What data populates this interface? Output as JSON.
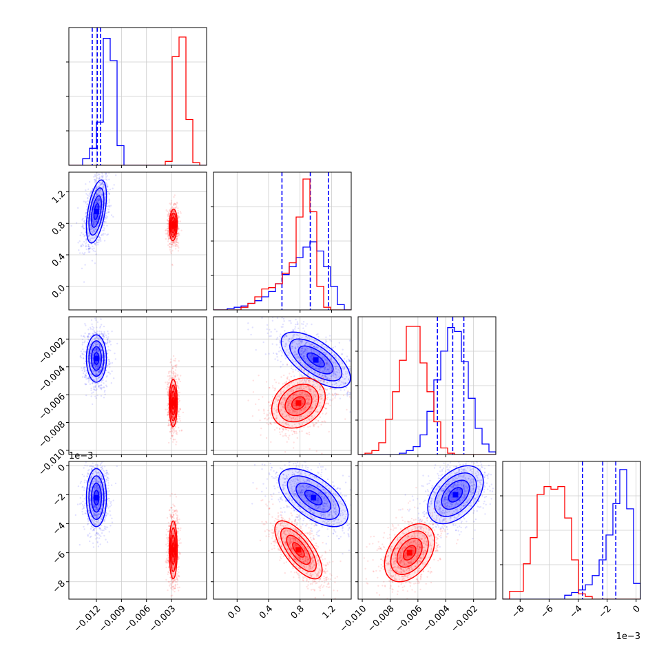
{
  "chart_data": {
    "type": "corner",
    "title": "",
    "parameters": [
      {
        "index": 0,
        "range": [
          -0.0153,
          0.0012
        ],
        "ticks": [
          -0.012,
          -0.009,
          -0.006,
          -0.003
        ],
        "tick_labels": [
          "−0.012",
          "−0.009",
          "−0.006",
          "−0.003"
        ]
      },
      {
        "index": 1,
        "range": [
          -0.3,
          1.45
        ],
        "ticks": [
          0.0,
          0.4,
          0.8,
          1.2
        ],
        "tick_labels": [
          "0.0",
          "0.4",
          "0.8",
          "1.2"
        ]
      },
      {
        "index": 2,
        "range": [
          -0.0103,
          -0.0004
        ],
        "ticks": [
          -0.01,
          -0.008,
          -0.006,
          -0.004,
          -0.002
        ],
        "tick_labels": [
          "−0.010",
          "−0.008",
          "−0.006",
          "−0.004",
          "−0.002"
        ]
      },
      {
        "index": 3,
        "range": [
          -0.0092,
          0.0003
        ],
        "ticks": [
          -0.008,
          -0.006,
          -0.004,
          -0.002,
          0.0
        ],
        "tick_labels": [
          "−8",
          "−6",
          "−4",
          "−2",
          "0"
        ],
        "offset_label": "1e−3"
      }
    ],
    "offset_label_row3": "1e−3",
    "series": [
      {
        "color": "#0000ff",
        "means": [
          -0.012,
          1.0,
          -0.0035,
          -0.002
        ],
        "stds": [
          0.00075,
          0.25,
          0.001,
          0.0012
        ],
        "quantile_lines": [
          [
            -0.0125,
            -0.0119,
            -0.0115
          ],
          [
            0.57,
            0.93,
            1.16
          ],
          [
            -0.0046,
            -0.0035,
            -0.0027
          ],
          [
            -0.0037,
            -0.0023,
            -0.0014
          ]
        ],
        "pair_contours": [
          {
            "row": 1,
            "col": 0,
            "cx": -0.012,
            "cy": 0.95,
            "sx": 0.0006,
            "sy": 0.2,
            "rho": 0.5
          },
          {
            "row": 2,
            "col": 0,
            "cx": -0.012,
            "cy": -0.0034,
            "sx": 0.0006,
            "sy": 0.00085,
            "rho": 0.0
          },
          {
            "row": 2,
            "col": 1,
            "cx": 1.0,
            "cy": -0.0035,
            "sx": 0.22,
            "sy": 0.001,
            "rho": -0.65
          },
          {
            "row": 3,
            "col": 0,
            "cx": -0.012,
            "cy": -0.0022,
            "sx": 0.0006,
            "sy": 0.001,
            "rho": 0.0
          },
          {
            "row": 3,
            "col": 1,
            "cx": 0.97,
            "cy": -0.0022,
            "sx": 0.22,
            "sy": 0.001,
            "rho": -0.6
          },
          {
            "row": 3,
            "col": 2,
            "cx": -0.0033,
            "cy": -0.002,
            "sx": 0.001,
            "sy": 0.001,
            "rho": 0.45
          }
        ],
        "histograms": [
          [
            0,
            0,
            0.05,
            0.13,
            0.33,
            0.97,
            0.8,
            0.15,
            0,
            0,
            0,
            0,
            0,
            0,
            0,
            0,
            0,
            0,
            0,
            0
          ],
          [
            0,
            0,
            0.01,
            0.02,
            0.03,
            0.05,
            0.07,
            0.1,
            0.14,
            0.2,
            0.27,
            0.33,
            0.4,
            0.48,
            0.52,
            0.45,
            0.33,
            0.18,
            0.04,
            0
          ],
          [
            0,
            0,
            0,
            0,
            0,
            0,
            0.01,
            0.03,
            0.06,
            0.15,
            0.33,
            0.57,
            0.79,
            0.97,
            0.94,
            0.71,
            0.43,
            0.2,
            0.08,
            0.02
          ],
          [
            0,
            0,
            0,
            0,
            0,
            0,
            0,
            0,
            0,
            0.03,
            0.05,
            0.07,
            0.11,
            0.18,
            0.3,
            0.49,
            0.73,
            0.99,
            0.69,
            0.12
          ]
        ]
      },
      {
        "color": "#ff0000",
        "means": [
          -0.003,
          0.72,
          -0.0065,
          -0.0059
        ],
        "stds": [
          0.00025,
          0.18,
          0.0009,
          0.0011
        ],
        "pair_contours": [
          {
            "row": 1,
            "col": 0,
            "cx": -0.0028,
            "cy": 0.78,
            "sx": 0.00024,
            "sy": 0.1,
            "rho": 0.1
          },
          {
            "row": 2,
            "col": 0,
            "cx": -0.0028,
            "cy": -0.0066,
            "sx": 0.00024,
            "sy": 0.00085,
            "rho": 0.0
          },
          {
            "row": 2,
            "col": 1,
            "cx": 0.78,
            "cy": -0.0066,
            "sx": 0.17,
            "sy": 0.0009,
            "rho": 0.25
          },
          {
            "row": 3,
            "col": 0,
            "cx": -0.0028,
            "cy": -0.0058,
            "sx": 0.00024,
            "sy": 0.001,
            "rho": 0.0
          },
          {
            "row": 3,
            "col": 1,
            "cx": 0.78,
            "cy": -0.0058,
            "sx": 0.15,
            "sy": 0.001,
            "rho": -0.7
          },
          {
            "row": 3,
            "col": 2,
            "cx": -0.0066,
            "cy": -0.006,
            "sx": 0.0009,
            "sy": 0.001,
            "rho": 0.4
          }
        ],
        "histograms": [
          [
            0,
            0,
            0,
            0,
            0,
            0,
            0,
            0,
            0,
            0,
            0,
            0,
            0,
            0,
            0.03,
            0.83,
            0.98,
            0.35,
            0.02,
            0
          ],
          [
            0,
            0,
            0,
            0,
            0.02,
            0.05,
            0.1,
            0.16,
            0.17,
            0.2,
            0.28,
            0.36,
            0.71,
            1.0,
            0.75,
            0.18,
            0.02,
            0,
            0,
            0
          ],
          [
            0,
            0.01,
            0.03,
            0.09,
            0.27,
            0.48,
            0.72,
            0.98,
            0.98,
            0.7,
            0.48,
            0.25,
            0.05,
            0.01,
            0,
            0,
            0,
            0,
            0,
            0
          ],
          [
            0,
            0.06,
            0.06,
            0.27,
            0.47,
            0.8,
            0.86,
            0.84,
            0.86,
            0.62,
            0.3,
            0.04,
            0.02,
            0,
            0,
            0,
            0,
            0,
            0,
            0
          ]
        ]
      }
    ],
    "grid": true
  }
}
